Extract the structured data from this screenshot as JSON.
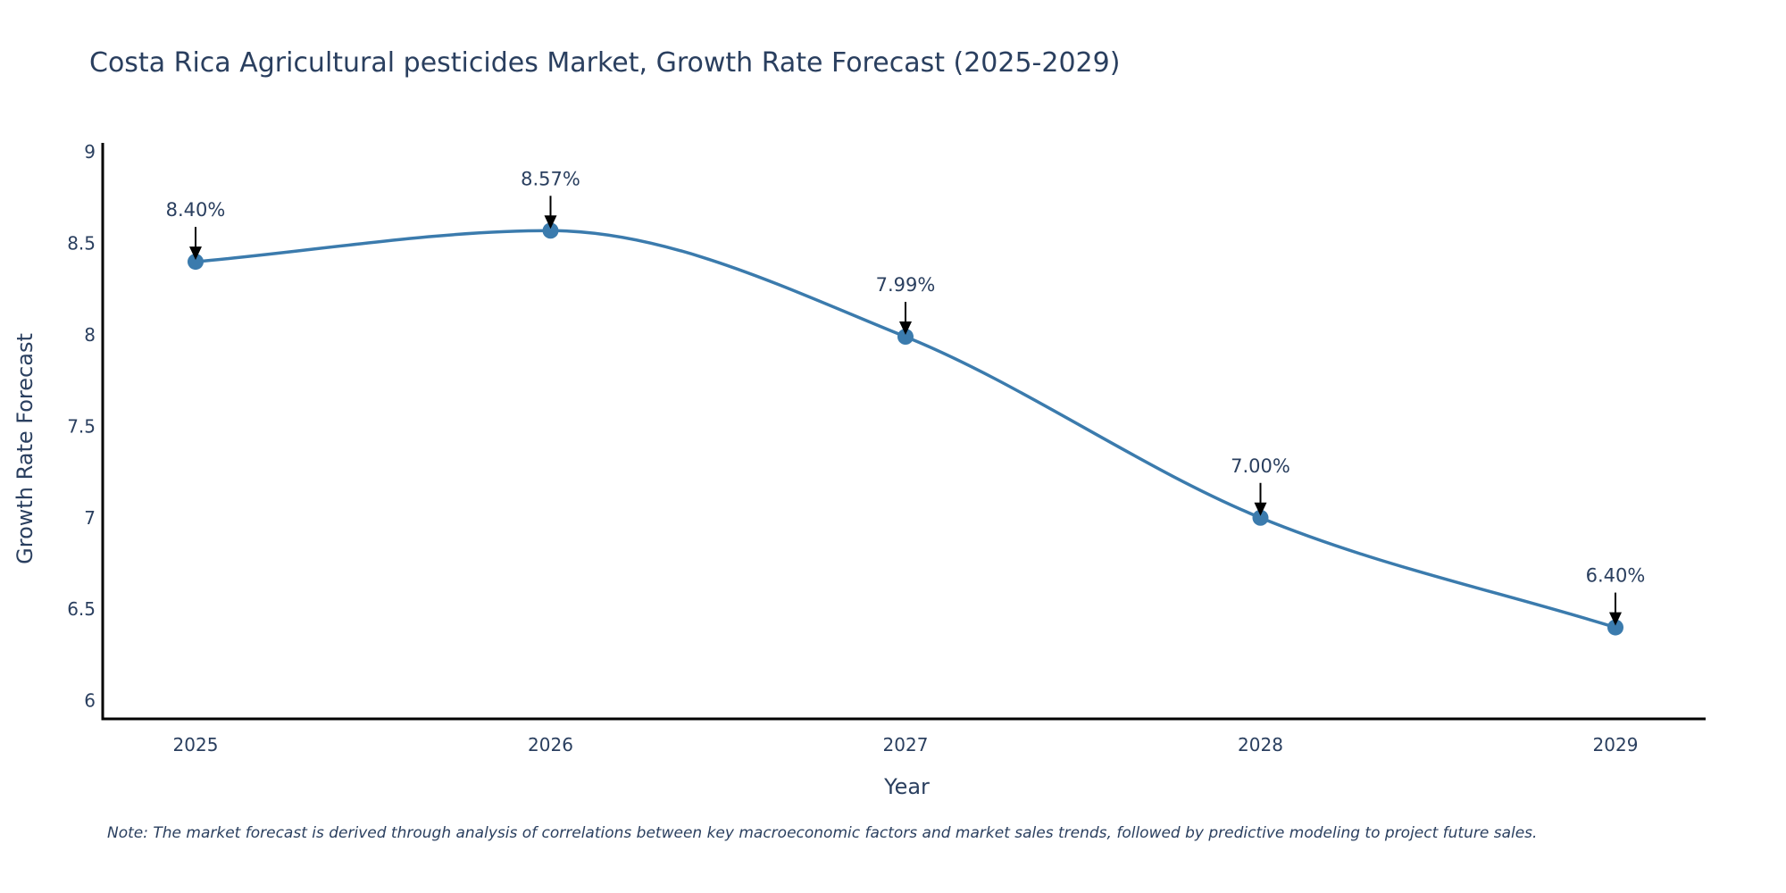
{
  "colors": {
    "series": "#3b7bad",
    "marker": "#3b7bad",
    "axis": "#000000",
    "arrow": "#000000",
    "text": "#2a3f5f"
  },
  "chart_data": {
    "type": "line",
    "title": "Costa Rica Agricultural pesticides Market, Growth Rate Forecast (2025-2029)",
    "xlabel": "Year",
    "ylabel": "Growth Rate Forecast",
    "x": [
      "2025",
      "2026",
      "2027",
      "2028",
      "2029"
    ],
    "series": [
      {
        "name": "Growth Rate Forecast",
        "values": [
          8.4,
          8.57,
          7.99,
          7.0,
          6.4
        ]
      }
    ],
    "data_labels": [
      "8.40%",
      "8.57%",
      "7.99%",
      "7.00%",
      "6.40%"
    ],
    "ylim": [
      5.9,
      9.05
    ],
    "yticks": [
      6,
      6.5,
      7,
      7.5,
      8,
      8.5,
      9
    ],
    "ytick_labels": [
      "6",
      "6.5",
      "7",
      "7.5",
      "8",
      "8.5",
      "9"
    ],
    "grid": false,
    "line_shape": "spline",
    "note": "Note: The market forecast is derived through analysis of correlations between key macroeconomic factors and market sales trends, followed by predictive modeling to project future sales."
  }
}
